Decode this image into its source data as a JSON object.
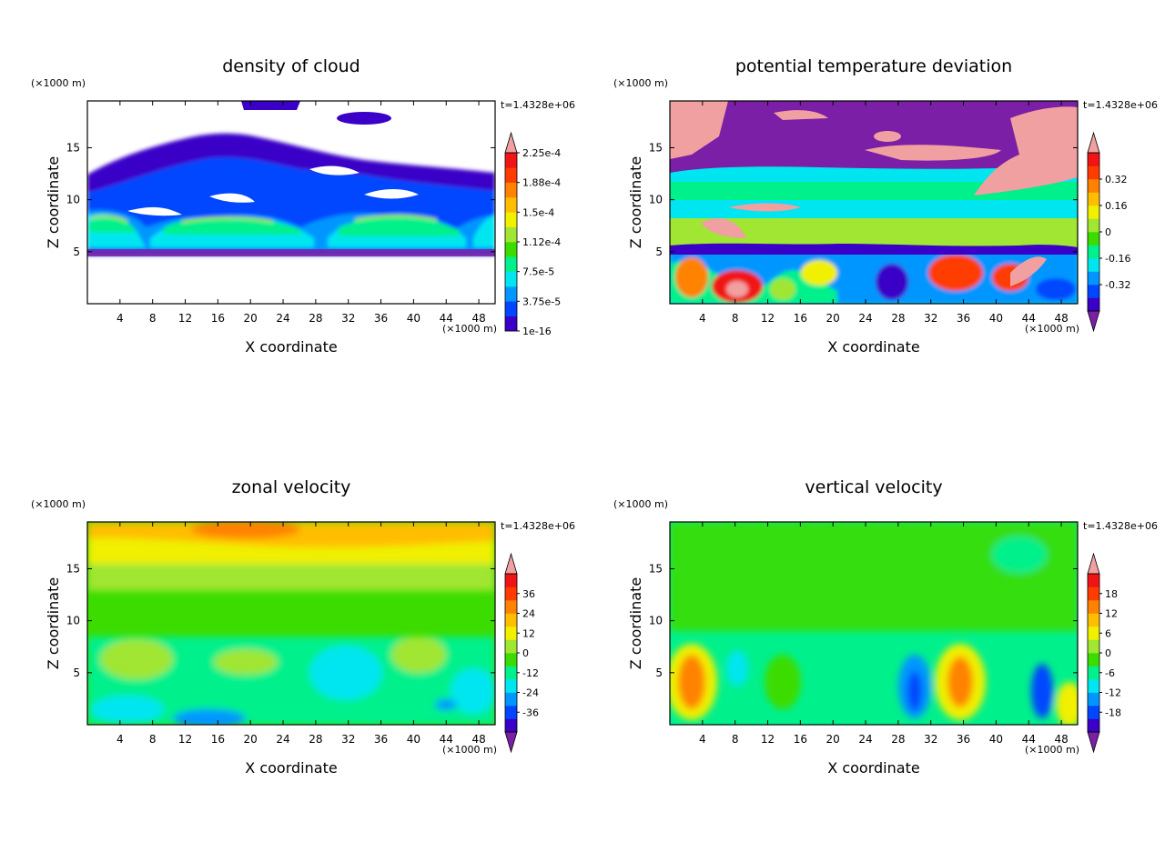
{
  "figure": {
    "time_label": "t=1.4328e+06",
    "unit_label": "(×1000 m)"
  },
  "palette": [
    "#7a1fa6",
    "#3a00c8",
    "#0046ff",
    "#0096ff",
    "#00e6f0",
    "#00f08c",
    "#3cdc00",
    "#a0e632",
    "#f0f000",
    "#ffbe00",
    "#ff8200",
    "#ff3c00",
    "#f01414",
    "#f0a0a0"
  ],
  "chart_data": [
    {
      "type": "heatmap",
      "title": "density of cloud",
      "xlabel": "X coordinate",
      "ylabel": "Z coordinate",
      "xlim": [
        0,
        50
      ],
      "ylim": [
        0,
        19.5
      ],
      "xticks": [
        "4",
        "8",
        "12",
        "16",
        "20",
        "24",
        "28",
        "32",
        "36",
        "40",
        "44",
        "48"
      ],
      "yticks": [
        "5",
        "10",
        "15"
      ],
      "colorbar_labels": [
        "1e-16",
        "3.75e-5",
        "7.5e-5",
        "1.12e-4",
        "1.5e-4",
        "1.88e-4",
        "2.25e-4"
      ],
      "colorbar_ends": [
        false,
        true
      ]
    },
    {
      "type": "heatmap",
      "title": "potential temperature deviation",
      "xlabel": "X coordinate",
      "ylabel": "Z coordinate",
      "xlim": [
        0,
        50
      ],
      "ylim": [
        0,
        19.5
      ],
      "xticks": [
        "4",
        "8",
        "12",
        "16",
        "20",
        "24",
        "28",
        "32",
        "36",
        "40",
        "44",
        "48"
      ],
      "yticks": [
        "5",
        "10",
        "15"
      ],
      "colorbar_labels": [
        "-0.32",
        "-0.16",
        "0",
        "0.16",
        "0.32"
      ],
      "colorbar_ends": [
        true,
        true
      ]
    },
    {
      "type": "heatmap",
      "title": "zonal velocity",
      "xlabel": "X coordinate",
      "ylabel": "Z coordinate",
      "xlim": [
        0,
        50
      ],
      "ylim": [
        0,
        19.5
      ],
      "xticks": [
        "4",
        "8",
        "12",
        "16",
        "20",
        "24",
        "28",
        "32",
        "36",
        "40",
        "44",
        "48"
      ],
      "yticks": [
        "5",
        "10",
        "15"
      ],
      "colorbar_labels": [
        "-36",
        "-24",
        "-12",
        "0",
        "12",
        "24",
        "36"
      ],
      "colorbar_ends": [
        true,
        true
      ]
    },
    {
      "type": "heatmap",
      "title": "vertical velocity",
      "xlabel": "X coordinate",
      "ylabel": "Z coordinate",
      "xlim": [
        0,
        50
      ],
      "ylim": [
        0,
        19.5
      ],
      "xticks": [
        "4",
        "8",
        "12",
        "16",
        "20",
        "24",
        "28",
        "32",
        "36",
        "40",
        "44",
        "48"
      ],
      "yticks": [
        "5",
        "10",
        "15"
      ],
      "colorbar_labels": [
        "-18",
        "-12",
        "-6",
        "0",
        "6",
        "12",
        "18"
      ],
      "colorbar_ends": [
        true,
        true
      ]
    }
  ]
}
